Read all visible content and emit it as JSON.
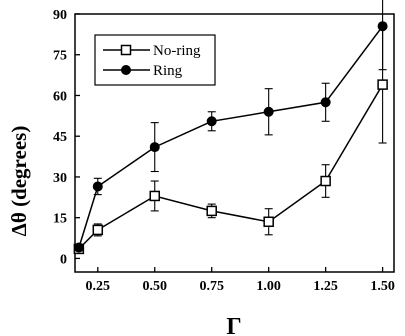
{
  "chart_data": {
    "type": "line",
    "title": "",
    "xlabel": "Γ",
    "ylabel": "Δθ (degrees)",
    "xlim": [
      0.15,
      1.55
    ],
    "ylim": [
      -5,
      90
    ],
    "x_ticks": [
      0.25,
      0.5,
      0.75,
      1.0,
      1.25,
      1.5
    ],
    "x_tick_labels": [
      "0.25",
      "0.50",
      "0.75",
      "1.00",
      "1.25",
      "1.50"
    ],
    "y_ticks": [
      0,
      15,
      30,
      45,
      60,
      75,
      90
    ],
    "y_tick_labels": [
      "0",
      "15",
      "30",
      "45",
      "60",
      "75",
      "90"
    ],
    "legend_position": "top-left",
    "series": [
      {
        "name": "No-ring",
        "marker": "open-square",
        "x": [
          0.167,
          0.25,
          0.5,
          0.75,
          1.0,
          1.25,
          1.5
        ],
        "y": [
          3.5,
          10.5,
          23,
          17.5,
          13.5,
          28.5,
          64
        ],
        "err": [
          1.5,
          2.2,
          5.5,
          2.5,
          4.8,
          6.0,
          21.5
        ]
      },
      {
        "name": "Ring",
        "marker": "filled-circle",
        "x": [
          0.167,
          0.25,
          0.5,
          0.75,
          1.0,
          1.25,
          1.5
        ],
        "y": [
          4,
          26.5,
          41,
          50.5,
          54,
          57.5,
          85.5
        ],
        "err": [
          0.8,
          3.0,
          9.0,
          3.5,
          8.5,
          7.0,
          16.0
        ]
      }
    ]
  }
}
